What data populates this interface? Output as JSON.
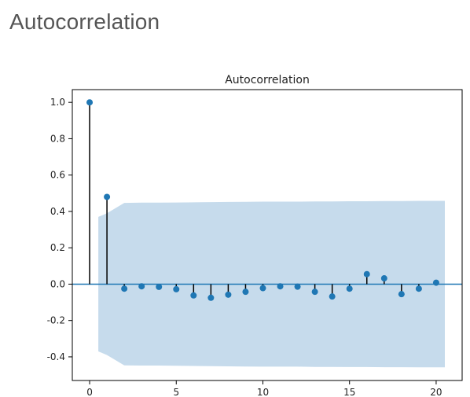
{
  "page": {
    "heading": "Autocorrelation"
  },
  "chart_data": {
    "type": "stem",
    "title": "Autocorrelation",
    "xlabel": "",
    "ylabel": "",
    "xlim": [
      -1,
      21.5
    ],
    "ylim": [
      -0.53,
      1.07
    ],
    "xticks": [
      "0",
      "5",
      "10",
      "15",
      "20"
    ],
    "yticks": [
      "1.0",
      "0.8",
      "0.6",
      "0.4",
      "0.2",
      "0.0",
      "-0.2",
      "-0.4"
    ],
    "lags": [
      0,
      1,
      2,
      3,
      4,
      5,
      6,
      7,
      8,
      9,
      10,
      11,
      12,
      13,
      14,
      15,
      16,
      17,
      18,
      19,
      20
    ],
    "acf": [
      1.0,
      0.48,
      -0.025,
      -0.012,
      -0.015,
      -0.028,
      -0.062,
      -0.075,
      -0.058,
      -0.042,
      -0.022,
      -0.012,
      -0.014,
      -0.042,
      -0.068,
      -0.025,
      0.055,
      0.032,
      -0.055,
      -0.025,
      0.008
    ],
    "confidence_band": {
      "lags": [
        0.5,
        1,
        2,
        3,
        4,
        5,
        6,
        7,
        8,
        9,
        10,
        11,
        12,
        13,
        14,
        15,
        16,
        17,
        18,
        19,
        20,
        20.5
      ],
      "upper": [
        0.37,
        0.39,
        0.447,
        0.448,
        0.448,
        0.449,
        0.45,
        0.451,
        0.452,
        0.453,
        0.454,
        0.454,
        0.454,
        0.455,
        0.455,
        0.456,
        0.456,
        0.457,
        0.457,
        0.458,
        0.458,
        0.458
      ],
      "lower": [
        -0.37,
        -0.39,
        -0.447,
        -0.448,
        -0.448,
        -0.449,
        -0.45,
        -0.451,
        -0.452,
        -0.453,
        -0.454,
        -0.454,
        -0.454,
        -0.455,
        -0.455,
        -0.456,
        -0.456,
        -0.457,
        -0.457,
        -0.458,
        -0.458,
        -0.458
      ]
    },
    "colors": {
      "marker": "#1f77b4",
      "stem": "#000000",
      "band": "#c6dbec",
      "zero_line": "#1f77b4",
      "axes": "#000000"
    },
    "grid": false
  }
}
